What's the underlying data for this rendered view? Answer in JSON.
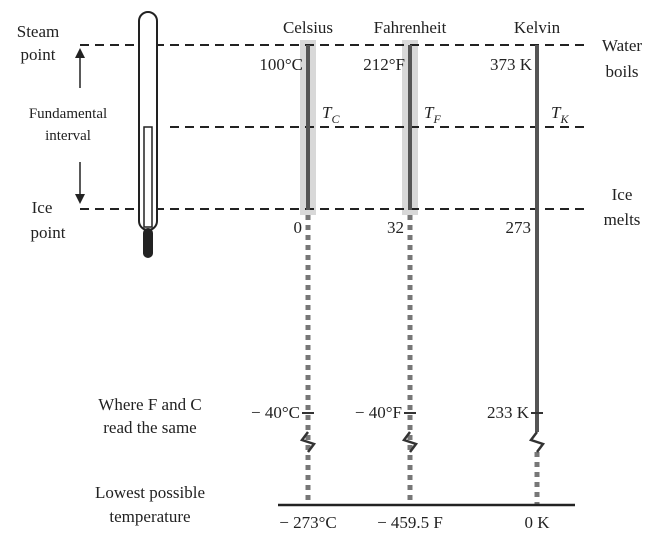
{
  "left_labels": {
    "steam_point": [
      "Steam",
      "point"
    ],
    "fundamental_interval": [
      "Fundamental",
      "interval"
    ],
    "ice_point": [
      "Ice",
      "point"
    ],
    "same_reading": [
      "Where F and C",
      "read the same"
    ],
    "lowest": [
      "Lowest possible",
      "temperature"
    ]
  },
  "right_labels": {
    "water_boils": [
      "Water",
      "boils"
    ],
    "ice_melts": [
      "Ice",
      "melts"
    ]
  },
  "scales": [
    {
      "name": "Celsius",
      "boiling": "100°C",
      "symbol": "T",
      "subscript": "C",
      "melting": "0",
      "same": "− 40°C",
      "lowest": "− 273°C"
    },
    {
      "name": "Fahrenheit",
      "boiling": "212°F",
      "symbol": "T",
      "subscript": "F",
      "melting": "32",
      "same": "− 40°F",
      "lowest": "− 459.5 F"
    },
    {
      "name": "Kelvin",
      "boiling": "373 K",
      "symbol": "T",
      "subscript": "K",
      "melting": "273",
      "same": "233 K",
      "lowest": "0 K"
    }
  ]
}
